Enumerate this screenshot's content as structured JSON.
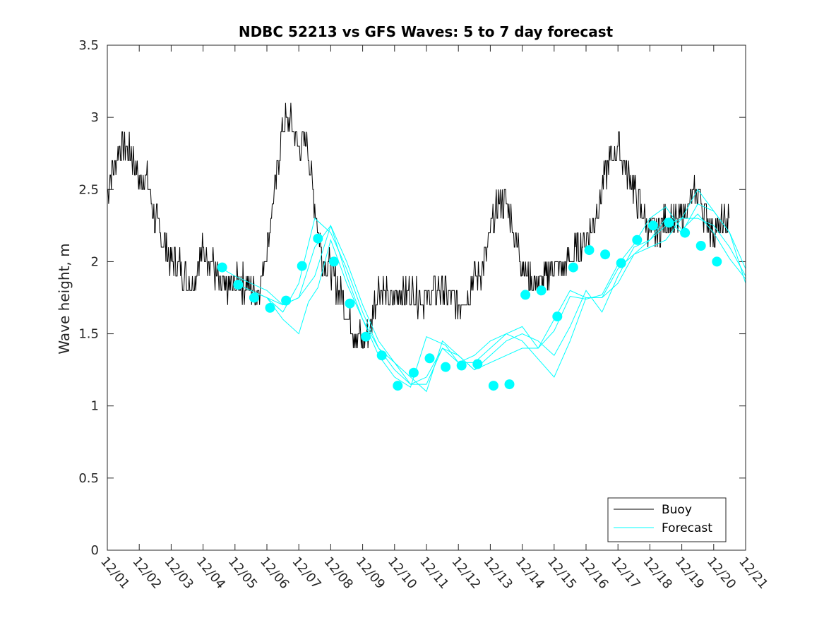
{
  "chart_data": {
    "type": "line",
    "title": "NDBC 52213 vs GFS Waves: 5 to 7 day forecast",
    "xlabel": "",
    "ylabel": "Wave height, m",
    "xlim": [
      0,
      20
    ],
    "ylim": [
      0,
      3.5
    ],
    "yticks": [
      0,
      0.5,
      1,
      1.5,
      2,
      2.5,
      3,
      3.5
    ],
    "ytick_labels": [
      "0",
      "0.5",
      "1",
      "1.5",
      "2",
      "2.5",
      "3",
      "3.5"
    ],
    "xtick_labels": [
      "12/01",
      "12/02",
      "12/03",
      "12/04",
      "12/05",
      "12/06",
      "12/07",
      "12/08",
      "12/09",
      "12/10",
      "12/11",
      "12/12",
      "12/13",
      "12/14",
      "12/15",
      "12/16",
      "12/17",
      "12/18",
      "12/19",
      "12/20",
      "12/21"
    ],
    "grid": false,
    "legend": {
      "position": "bottom-right",
      "entries": [
        "Buoy",
        "Forecast"
      ]
    },
    "colors": {
      "buoy": "#000000",
      "forecast": "#00ffff",
      "markers": "#00ffff",
      "axis": "#262626"
    },
    "buoy": {
      "name": "Buoy",
      "x": [
        0,
        0.25,
        0.5,
        0.75,
        1,
        1.25,
        1.5,
        1.75,
        2,
        2.25,
        2.5,
        2.75,
        3,
        3.25,
        3.5,
        3.75,
        4,
        4.25,
        4.5,
        4.75,
        5,
        5.25,
        5.5,
        5.75,
        6,
        6.25,
        6.5,
        6.75,
        7,
        7.25,
        7.5,
        7.75,
        8,
        8.25,
        8.5,
        8.75,
        9,
        9.25,
        9.5,
        9.75,
        10,
        10.25,
        10.5,
        10.75,
        11,
        11.25,
        11.5,
        11.75,
        12,
        12.25,
        12.5,
        12.75,
        13,
        13.25,
        13.5,
        13.75,
        14,
        14.25,
        14.5,
        14.75,
        15,
        15.25,
        15.5,
        15.75,
        16,
        16.25,
        16.5,
        16.75,
        17,
        17.25,
        17.5,
        17.75,
        18,
        18.25,
        18.5,
        18.75,
        19,
        19.25,
        19.5
      ],
      "values": [
        2.5,
        2.7,
        2.8,
        2.75,
        2.55,
        2.6,
        2.3,
        2.15,
        2.0,
        2.0,
        1.85,
        1.9,
        2.1,
        2.0,
        1.85,
        1.8,
        1.85,
        1.85,
        1.8,
        1.8,
        2.1,
        2.5,
        2.95,
        3.0,
        2.8,
        2.85,
        2.4,
        2.0,
        1.95,
        1.8,
        1.65,
        1.5,
        1.45,
        1.55,
        1.85,
        1.75,
        1.75,
        1.8,
        1.8,
        1.75,
        1.75,
        1.8,
        1.8,
        1.75,
        1.7,
        1.75,
        1.9,
        1.95,
        2.2,
        2.4,
        2.45,
        2.2,
        2.0,
        1.85,
        1.85,
        1.9,
        2.0,
        1.95,
        2.0,
        2.1,
        2.15,
        2.25,
        2.5,
        2.7,
        2.8,
        2.65,
        2.5,
        2.35,
        2.2,
        2.2,
        2.3,
        2.25,
        2.3,
        2.4,
        2.5,
        2.3,
        2.2,
        2.25,
        2.3
      ]
    },
    "forecast_series": [
      {
        "name": "Forecast",
        "x": [
          3.6,
          4.0,
          4.5,
          5.0,
          5.5,
          6.0,
          6.5,
          7.0,
          7.5,
          8.0,
          8.5,
          9.0,
          9.5,
          10.0,
          10.5,
          11.0,
          11.5,
          12.0,
          12.5,
          13.0,
          13.5,
          14.0,
          14.5,
          15.0,
          15.5,
          16.0,
          16.5,
          17.0,
          17.5,
          18.0,
          18.5,
          19.0,
          19.5,
          20.0
        ],
        "values": [
          1.95,
          1.9,
          1.85,
          1.8,
          1.7,
          1.75,
          1.9,
          2.25,
          2.0,
          1.7,
          1.45,
          1.3,
          1.15,
          1.15,
          1.4,
          1.35,
          1.25,
          1.3,
          1.35,
          1.4,
          1.4,
          1.6,
          1.8,
          1.75,
          1.75,
          1.85,
          2.05,
          2.1,
          2.15,
          2.3,
          2.3,
          2.25,
          2.1,
          1.9
        ]
      },
      {
        "name": "Forecast",
        "x": [
          4.0,
          4.5,
          5.0,
          5.5,
          6.0,
          6.5,
          7.0,
          7.5,
          8.0,
          8.5,
          9.0,
          9.5,
          10.0,
          10.5,
          11.0,
          11.5,
          12.0,
          12.5,
          13.0,
          13.5,
          14.0,
          14.5,
          15.0,
          15.5,
          16.0,
          16.5,
          17.0,
          17.5,
          18.0,
          18.5,
          19.0,
          19.5,
          20.0
        ],
        "values": [
          1.85,
          1.8,
          1.75,
          1.65,
          1.85,
          2.3,
          2.2,
          1.95,
          1.65,
          1.4,
          1.3,
          1.2,
          1.1,
          1.45,
          1.35,
          1.25,
          1.35,
          1.45,
          1.5,
          1.45,
          1.35,
          1.55,
          1.8,
          1.65,
          1.9,
          2.1,
          2.15,
          2.3,
          2.2,
          2.4,
          2.35,
          2.2,
          1.95
        ]
      },
      {
        "name": "Forecast",
        "x": [
          4.5,
          5.0,
          5.5,
          6.0,
          6.5,
          7.0,
          7.5,
          8.0,
          8.5,
          9.0,
          9.5,
          10.0,
          10.5,
          11.0,
          11.5,
          12.0,
          12.5,
          13.0,
          14.0,
          14.5,
          15.0,
          15.5,
          16.0,
          16.5,
          17.0,
          17.5,
          18.0,
          18.5,
          19.0,
          19.5,
          20.0
        ],
        "values": [
          1.8,
          1.75,
          1.7,
          1.75,
          2.1,
          2.25,
          1.9,
          1.6,
          1.4,
          1.25,
          1.15,
          1.2,
          1.4,
          1.3,
          1.3,
          1.4,
          1.5,
          1.45,
          1.2,
          1.45,
          1.75,
          1.75,
          1.95,
          2.05,
          2.15,
          2.25,
          2.3,
          2.5,
          2.35,
          2.2,
          1.85
        ]
      },
      {
        "name": "Forecast",
        "x": [
          5.0,
          5.5,
          6.0,
          6.3,
          6.6,
          7.0,
          7.5,
          8.0,
          8.5,
          9.0,
          9.5,
          10.0,
          10.3,
          10.6,
          11.0,
          11.5,
          12.0,
          12.5,
          13.0,
          13.5,
          14.0,
          14.5,
          15.0,
          15.5,
          16.0,
          16.5,
          17.0,
          17.5,
          18.0,
          18.5,
          19.0,
          19.5,
          20.0
        ],
        "values": [
          1.75,
          1.6,
          1.5,
          1.72,
          1.82,
          2.15,
          1.85,
          1.6,
          1.35,
          1.2,
          1.13,
          1.48,
          1.45,
          1.42,
          1.3,
          1.35,
          1.45,
          1.5,
          1.55,
          1.4,
          1.52,
          1.76,
          1.74,
          1.77,
          1.98,
          2.12,
          2.3,
          2.38,
          2.22,
          2.33,
          2.2,
          2.02,
          1.88
        ]
      }
    ],
    "forecast_markers": {
      "x": [
        3.6,
        4.1,
        4.6,
        5.1,
        5.6,
        6.1,
        6.6,
        7.1,
        7.6,
        8.1,
        8.6,
        9.1,
        9.6,
        10.1,
        10.6,
        11.1,
        11.6,
        12.1,
        12.6,
        13.1,
        13.6,
        14.1,
        14.6,
        15.1,
        15.6,
        16.1,
        16.6,
        17.1,
        17.6,
        18.1,
        18.6,
        19.1,
        19.6
      ],
      "values": [
        1.96,
        1.84,
        1.75,
        1.68,
        1.73,
        1.97,
        2.16,
        2.0,
        1.71,
        1.48,
        1.35,
        1.14,
        1.23,
        1.33,
        1.27,
        1.28,
        1.29,
        1.14,
        1.15,
        1.77,
        1.8,
        1.62,
        1.96,
        2.08,
        2.05,
        1.99,
        2.15,
        2.25,
        2.27,
        2.2,
        2.11,
        2.0,
        null
      ]
    }
  }
}
